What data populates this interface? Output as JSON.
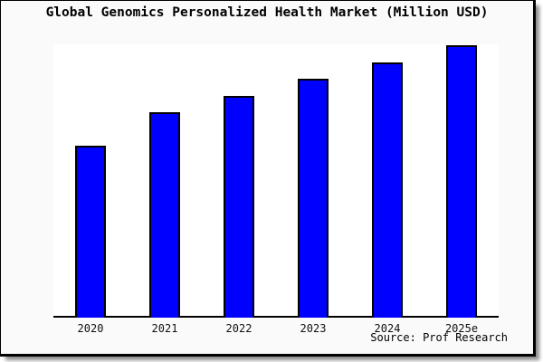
{
  "chart_data": {
    "type": "bar",
    "title": "Global Genomics Personalized Health Market (Million USD)",
    "categories": [
      "2020",
      "2021",
      "2022",
      "2023",
      "2024",
      "2025e"
    ],
    "values": [
      190,
      227,
      245,
      264,
      282,
      301
    ],
    "ylim": [
      0,
      302
    ],
    "xlabel": "",
    "ylabel": "",
    "grid": false,
    "y_axis": "hidden",
    "legend": "none",
    "note": "No numeric y-axis is rendered; values are relative bar heights measured in pixels from the baseline",
    "colors": {
      "bar_fill": "#0000ff",
      "bar_edge": "#000000",
      "axis": "#000000",
      "plot_bg": "#ffffff",
      "card_bg": "#fafafa",
      "title_color": "#000000"
    }
  },
  "footer": {
    "source_label": "Source: Prof Research"
  }
}
